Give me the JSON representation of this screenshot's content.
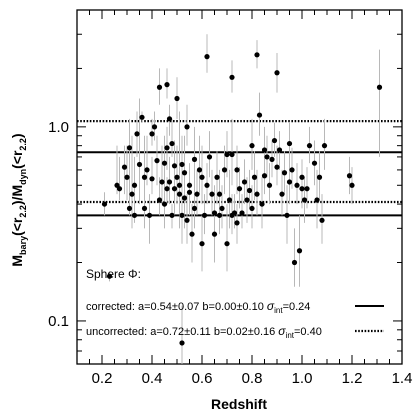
{
  "chart_data": {
    "type": "scatter",
    "xlabel": "Redshift",
    "ylabel_html": [
      "M",
      "bary",
      "(<r",
      "2.2",
      ")/M",
      "dyn",
      "(<r",
      "2.2",
      ")"
    ],
    "x_log": false,
    "y_log": true,
    "xlim": [
      0.1,
      1.4
    ],
    "ylim": [
      0.06,
      4.0
    ],
    "x_ticks": [
      0.2,
      0.4,
      0.6,
      0.8,
      1.0,
      1.2,
      1.4
    ],
    "x_tick_labels": [
      "0.2",
      "0.4",
      "0.6",
      "0.8",
      "1.0",
      "1.2",
      "1.4"
    ],
    "y_ticks": [
      0.1,
      1.0
    ],
    "y_tick_labels": [
      "0.1",
      "1.0"
    ],
    "grid": false,
    "annotation": "Sphere Φ:",
    "legend": {
      "placement": "bottom",
      "entries": [
        {
          "name": "corrected",
          "text_parts": [
            "corrected: a=0.54±0.07 b=0.00±0.10 ",
            "σ",
            "int",
            "=0.24"
          ],
          "style": "solid"
        },
        {
          "name": "uncorrected",
          "text_parts": [
            "uncorrected: a=0.72±0.11 b=0.02±0.16 ",
            "σ",
            "int",
            "=0.40"
          ],
          "style": "dotted"
        }
      ]
    },
    "reference_lines": [
      {
        "name": "corrected-upper",
        "y": 0.74,
        "style": "solid"
      },
      {
        "name": "corrected-lower",
        "y": 0.35,
        "style": "solid"
      },
      {
        "name": "uncorrected-upper",
        "y": 1.07,
        "style": "dotted"
      },
      {
        "name": "uncorrected-lower",
        "y": 0.41,
        "style": "dotted"
      }
    ],
    "series": [
      {
        "points": [
          [
            0.21,
            0.4,
            0.35,
            0.46
          ],
          [
            0.23,
            0.17,
            0.16,
            0.18
          ],
          [
            0.26,
            0.5,
            0.45,
            0.8
          ],
          [
            0.27,
            0.48,
            0.42,
            0.7
          ],
          [
            0.29,
            0.62,
            0.45,
            0.8
          ],
          [
            0.3,
            0.55,
            0.42,
            0.8
          ],
          [
            0.31,
            0.38,
            0.35,
            0.6
          ],
          [
            0.31,
            0.78,
            0.6,
            1.1
          ],
          [
            0.32,
            0.45,
            0.3,
            0.9
          ],
          [
            0.33,
            0.35,
            0.32,
            0.4
          ],
          [
            0.33,
            0.5,
            0.35,
            0.7
          ],
          [
            0.34,
            0.92,
            0.7,
            1.2
          ],
          [
            0.35,
            0.64,
            0.4,
            1.4
          ],
          [
            0.36,
            1.12,
            1.05,
            1.2
          ],
          [
            0.37,
            0.55,
            0.4,
            0.9
          ],
          [
            0.37,
            0.38,
            0.3,
            0.6
          ],
          [
            0.38,
            0.6,
            0.5,
            0.9
          ],
          [
            0.39,
            0.35,
            0.25,
            0.45
          ],
          [
            0.4,
            0.54,
            0.45,
            0.7
          ],
          [
            0.4,
            0.92,
            0.8,
            1.1
          ],
          [
            0.41,
            1.0,
            0.85,
            1.2
          ],
          [
            0.42,
            0.67,
            0.5,
            0.9
          ],
          [
            0.43,
            0.42,
            0.35,
            0.55
          ],
          [
            0.43,
            1.6,
            1.3,
            2.0
          ],
          [
            0.44,
            0.52,
            0.4,
            0.8
          ],
          [
            0.45,
            0.4,
            0.3,
            0.6
          ],
          [
            0.45,
            0.65,
            0.5,
            0.9
          ],
          [
            0.46,
            0.48,
            0.4,
            0.55
          ],
          [
            0.46,
            0.78,
            0.6,
            1.0
          ],
          [
            0.47,
            0.52,
            0.4,
            0.7
          ],
          [
            0.47,
            1.1,
            0.9,
            1.3
          ],
          [
            0.48,
            0.35,
            0.3,
            0.4
          ],
          [
            0.48,
            0.82,
            0.7,
            1.1
          ],
          [
            0.49,
            0.48,
            0.35,
            0.7
          ],
          [
            0.49,
            0.63,
            0.5,
            0.85
          ],
          [
            0.5,
            0.55,
            0.4,
            0.8
          ],
          [
            0.5,
            1.4,
            1.1,
            1.8
          ],
          [
            0.51,
            0.45,
            0.35,
            0.6
          ],
          [
            0.51,
            0.5,
            0.3,
            1.2
          ],
          [
            0.52,
            0.35,
            0.25,
            0.5
          ],
          [
            0.52,
            0.64,
            0.45,
            0.9
          ],
          [
            0.52,
            0.077,
            0.06,
            0.12
          ],
          [
            0.53,
            0.43,
            0.3,
            0.65
          ],
          [
            0.53,
            0.58,
            0.35,
            0.9
          ],
          [
            0.54,
            1.0,
            0.8,
            1.3
          ],
          [
            0.54,
            0.33,
            0.25,
            0.45
          ],
          [
            0.55,
            0.46,
            0.35,
            0.6
          ],
          [
            0.55,
            0.5,
            0.4,
            0.65
          ],
          [
            0.56,
            0.28,
            0.2,
            0.4
          ],
          [
            0.57,
            0.38,
            0.3,
            0.55
          ],
          [
            0.57,
            0.68,
            0.5,
            1.0
          ],
          [
            0.58,
            0.45,
            0.35,
            0.6
          ],
          [
            0.59,
            0.6,
            0.45,
            0.9
          ],
          [
            0.6,
            0.25,
            0.18,
            0.35
          ],
          [
            0.6,
            0.55,
            0.4,
            0.8
          ],
          [
            0.61,
            0.35,
            0.28,
            0.45
          ],
          [
            0.62,
            0.5,
            0.4,
            0.65
          ],
          [
            0.63,
            0.7,
            0.55,
            0.95
          ],
          [
            0.64,
            0.45,
            0.35,
            0.6
          ],
          [
            0.65,
            0.36,
            0.28,
            0.5
          ],
          [
            0.65,
            0.28,
            0.2,
            0.4
          ],
          [
            0.66,
            0.55,
            0.4,
            0.75
          ],
          [
            0.67,
            0.35,
            0.28,
            0.45
          ],
          [
            0.67,
            0.45,
            0.35,
            0.6
          ],
          [
            0.68,
            0.38,
            0.3,
            0.5
          ],
          [
            0.69,
            0.6,
            0.45,
            0.8
          ],
          [
            0.7,
            0.25,
            0.18,
            0.4
          ],
          [
            0.7,
            0.72,
            0.55,
            0.95
          ],
          [
            0.71,
            0.42,
            0.3,
            0.6
          ],
          [
            0.72,
            0.35,
            0.28,
            0.45
          ],
          [
            0.72,
            0.72,
            0.5,
            1.1
          ],
          [
            0.73,
            0.36,
            0.3,
            0.45
          ],
          [
            0.74,
            0.32,
            0.25,
            0.4
          ],
          [
            0.74,
            0.6,
            0.45,
            0.8
          ],
          [
            0.75,
            0.48,
            0.38,
            0.62
          ],
          [
            0.76,
            0.36,
            0.3,
            0.45
          ],
          [
            0.77,
            0.52,
            0.4,
            0.68
          ],
          [
            0.78,
            0.42,
            0.32,
            0.55
          ],
          [
            0.79,
            0.47,
            0.38,
            0.6
          ],
          [
            0.8,
            0.38,
            0.3,
            0.5
          ],
          [
            0.8,
            0.8,
            0.6,
            1.1
          ],
          [
            0.81,
            0.55,
            0.42,
            0.75
          ],
          [
            0.82,
            0.45,
            0.35,
            0.6
          ],
          [
            0.83,
            1.15,
            0.9,
            1.5
          ],
          [
            0.84,
            0.4,
            0.3,
            0.55
          ],
          [
            0.85,
            0.56,
            0.45,
            0.7
          ],
          [
            0.85,
            0.76,
            0.6,
            1.0
          ],
          [
            0.86,
            0.7,
            0.55,
            0.9
          ],
          [
            0.87,
            0.5,
            0.4,
            0.65
          ],
          [
            0.88,
            0.68,
            0.55,
            0.85
          ],
          [
            0.89,
            0.85,
            0.7,
            1.05
          ],
          [
            0.9,
            1.9,
            1.5,
            2.4
          ],
          [
            0.9,
            0.62,
            0.5,
            0.8
          ],
          [
            0.91,
            0.76,
            0.6,
            0.95
          ],
          [
            0.92,
            0.45,
            0.35,
            0.6
          ],
          [
            0.93,
            0.58,
            0.45,
            0.75
          ],
          [
            0.94,
            0.35,
            0.25,
            0.5
          ],
          [
            0.95,
            0.82,
            0.65,
            1.05
          ],
          [
            0.95,
            0.52,
            0.4,
            0.7
          ],
          [
            0.96,
            0.6,
            0.48,
            0.78
          ],
          [
            0.97,
            0.2,
            0.15,
            0.3
          ],
          [
            0.98,
            0.5,
            0.4,
            0.65
          ],
          [
            0.99,
            0.23,
            0.15,
            0.35
          ],
          [
            1.0,
            0.55,
            0.45,
            0.68
          ],
          [
            1.0,
            0.48,
            0.38,
            0.62
          ],
          [
            1.01,
            0.42,
            0.32,
            0.55
          ],
          [
            1.02,
            0.48,
            0.38,
            0.62
          ],
          [
            1.03,
            0.8,
            0.65,
            1.0
          ],
          [
            1.05,
            0.65,
            0.5,
            0.85
          ],
          [
            1.06,
            0.42,
            0.3,
            0.6
          ],
          [
            1.07,
            0.55,
            0.42,
            0.75
          ],
          [
            1.08,
            0.33,
            0.25,
            0.45
          ],
          [
            1.09,
            0.8,
            0.6,
            1.1
          ],
          [
            1.19,
            0.56,
            0.45,
            0.7
          ],
          [
            1.2,
            0.5,
            0.4,
            0.62
          ],
          [
            1.31,
            1.6,
            0.7,
            2.5
          ],
          [
            0.62,
            2.3,
            1.9,
            3.0
          ],
          [
            0.72,
            1.8,
            1.5,
            2.2
          ],
          [
            0.82,
            2.35,
            2.0,
            2.8
          ],
          [
            0.46,
            1.65,
            1.4,
            2.0
          ]
        ]
      }
    ]
  }
}
